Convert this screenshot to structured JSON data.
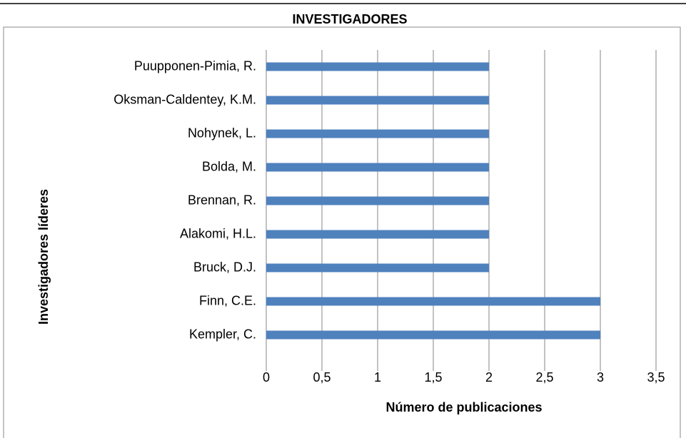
{
  "chart_data": {
    "type": "barh",
    "title": "INVESTIGADORES",
    "x_label": "Número de publicaciones",
    "y_label": "Investigadores líderes",
    "categories": [
      "Puupponen-Pimia, R.",
      "Oksman-Caldentey, K.M.",
      "Nohynek, L.",
      "Bolda, M.",
      "Brennan, R.",
      "Alakomi, H.L.",
      "Bruck, D.J.",
      "Finn, C.E.",
      "Kempler, C."
    ],
    "values": [
      2,
      2,
      2,
      2,
      2,
      2,
      2,
      3,
      3
    ],
    "color": "#4f81bd",
    "xlim": [
      0,
      3.5
    ],
    "xticks": [
      0,
      {
        "value": 0.5,
        "label": "0,5"
      },
      1,
      {
        "value": 1.5,
        "label": "1,5"
      },
      2,
      {
        "value": 2.5,
        "label": "2,5"
      },
      3,
      {
        "value": 3.5,
        "label": "3,5"
      }
    ],
    "grid": true
  }
}
